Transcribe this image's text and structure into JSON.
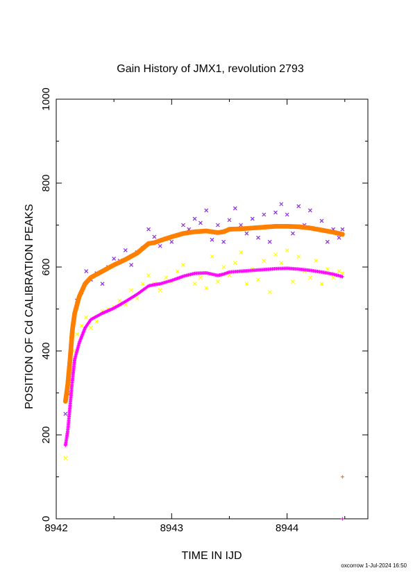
{
  "chart_data": {
    "type": "scatter",
    "title": "Gain History of JMX1, revolution 2793",
    "xlabel": "TIME IN IJD",
    "ylabel": "POSITION OF Cd CALIBRATION PEAKS",
    "xlim": [
      8942,
      8944.7
    ],
    "ylim": [
      0,
      1000
    ],
    "x_ticks": [
      "8942",
      "8943",
      "8944"
    ],
    "y_ticks": [
      "0",
      "200",
      "400",
      "600",
      "800",
      "1000"
    ],
    "grid": false,
    "series": [
      {
        "role": "fit-upper",
        "marker": "dot",
        "color": "#ff7f00",
        "points": [
          [
            8942.08,
            280
          ],
          [
            8942.1,
            320
          ],
          [
            8942.12,
            380
          ],
          [
            8942.14,
            450
          ],
          [
            8942.16,
            490
          ],
          [
            8942.2,
            530
          ],
          [
            8942.25,
            560
          ],
          [
            8942.3,
            575
          ],
          [
            8942.4,
            590
          ],
          [
            8942.5,
            605
          ],
          [
            8942.6,
            618
          ],
          [
            8942.7,
            633
          ],
          [
            8942.8,
            656
          ],
          [
            8942.85,
            658
          ],
          [
            8942.9,
            663
          ],
          [
            8943.0,
            672
          ],
          [
            8943.1,
            680
          ],
          [
            8943.2,
            684
          ],
          [
            8943.3,
            686
          ],
          [
            8943.4,
            682
          ],
          [
            8943.45,
            684
          ],
          [
            8943.5,
            690
          ],
          [
            8943.6,
            691
          ],
          [
            8943.7,
            693
          ],
          [
            8943.8,
            695
          ],
          [
            8943.9,
            697
          ],
          [
            8944.0,
            697
          ],
          [
            8944.1,
            696
          ],
          [
            8944.2,
            693
          ],
          [
            8944.3,
            688
          ],
          [
            8944.4,
            683
          ],
          [
            8944.48,
            678
          ]
        ]
      },
      {
        "role": "fit-lower",
        "marker": "plus",
        "color": "#ff00ff",
        "points": [
          [
            8942.08,
            175
          ],
          [
            8942.1,
            210
          ],
          [
            8942.12,
            270
          ],
          [
            8942.14,
            330
          ],
          [
            8942.16,
            380
          ],
          [
            8942.2,
            420
          ],
          [
            8942.25,
            455
          ],
          [
            8942.3,
            475
          ],
          [
            8942.4,
            490
          ],
          [
            8942.5,
            502
          ],
          [
            8942.6,
            518
          ],
          [
            8942.7,
            535
          ],
          [
            8942.8,
            555
          ],
          [
            8942.85,
            558
          ],
          [
            8942.9,
            560
          ],
          [
            8943.0,
            568
          ],
          [
            8943.1,
            578
          ],
          [
            8943.2,
            585
          ],
          [
            8943.3,
            586
          ],
          [
            8943.4,
            580
          ],
          [
            8943.45,
            583
          ],
          [
            8943.5,
            588
          ],
          [
            8943.6,
            590
          ],
          [
            8943.7,
            592
          ],
          [
            8943.8,
            594
          ],
          [
            8943.9,
            596
          ],
          [
            8944.0,
            597
          ],
          [
            8944.1,
            595
          ],
          [
            8944.2,
            592
          ],
          [
            8944.3,
            588
          ],
          [
            8944.4,
            583
          ],
          [
            8944.48,
            577
          ]
        ]
      },
      {
        "role": "measured-upper",
        "marker": "x",
        "color": "#8a2be2",
        "points": [
          [
            8942.08,
            250
          ],
          [
            8942.1,
            300
          ],
          [
            8942.12,
            370
          ],
          [
            8942.15,
            470
          ],
          [
            8942.18,
            520
          ],
          [
            8942.22,
            540
          ],
          [
            8942.26,
            590
          ],
          [
            8942.3,
            570
          ],
          [
            8942.35,
            585
          ],
          [
            8942.4,
            560
          ],
          [
            8942.45,
            600
          ],
          [
            8942.5,
            620
          ],
          [
            8942.55,
            615
          ],
          [
            8942.6,
            640
          ],
          [
            8942.65,
            605
          ],
          [
            8942.7,
            635
          ],
          [
            8942.75,
            645
          ],
          [
            8942.8,
            690
          ],
          [
            8942.85,
            672
          ],
          [
            8942.9,
            650
          ],
          [
            8942.95,
            668
          ],
          [
            8943.0,
            660
          ],
          [
            8943.05,
            675
          ],
          [
            8943.1,
            700
          ],
          [
            8943.15,
            690
          ],
          [
            8943.2,
            715
          ],
          [
            8943.25,
            705
          ],
          [
            8943.3,
            735
          ],
          [
            8943.35,
            665
          ],
          [
            8943.4,
            700
          ],
          [
            8943.45,
            660
          ],
          [
            8943.5,
            712
          ],
          [
            8943.55,
            740
          ],
          [
            8943.6,
            700
          ],
          [
            8943.65,
            680
          ],
          [
            8943.7,
            715
          ],
          [
            8943.75,
            670
          ],
          [
            8943.8,
            725
          ],
          [
            8943.85,
            660
          ],
          [
            8943.9,
            730
          ],
          [
            8943.95,
            750
          ],
          [
            8944.0,
            725
          ],
          [
            8944.05,
            680
          ],
          [
            8944.1,
            745
          ],
          [
            8944.15,
            700
          ],
          [
            8944.2,
            735
          ],
          [
            8944.25,
            690
          ],
          [
            8944.3,
            710
          ],
          [
            8944.35,
            660
          ],
          [
            8944.4,
            690
          ],
          [
            8944.45,
            670
          ],
          [
            8944.48,
            690
          ]
        ]
      },
      {
        "role": "measured-lower",
        "marker": "x",
        "color": "#ffff00",
        "points": [
          [
            8942.08,
            145
          ],
          [
            8942.1,
            200
          ],
          [
            8942.12,
            300
          ],
          [
            8942.15,
            400
          ],
          [
            8942.18,
            440
          ],
          [
            8942.22,
            460
          ],
          [
            8942.26,
            480
          ],
          [
            8942.3,
            455
          ],
          [
            8942.35,
            470
          ],
          [
            8942.4,
            495
          ],
          [
            8942.45,
            500
          ],
          [
            8942.5,
            505
          ],
          [
            8942.55,
            520
          ],
          [
            8942.6,
            510
          ],
          [
            8942.65,
            545
          ],
          [
            8942.7,
            525
          ],
          [
            8942.75,
            560
          ],
          [
            8942.8,
            580
          ],
          [
            8942.85,
            560
          ],
          [
            8942.9,
            545
          ],
          [
            8942.95,
            575
          ],
          [
            8943.0,
            565
          ],
          [
            8943.05,
            590
          ],
          [
            8943.1,
            605
          ],
          [
            8943.15,
            580
          ],
          [
            8943.2,
            560
          ],
          [
            8943.25,
            575
          ],
          [
            8943.3,
            550
          ],
          [
            8943.35,
            625
          ],
          [
            8943.4,
            565
          ],
          [
            8943.45,
            600
          ],
          [
            8943.5,
            580
          ],
          [
            8943.55,
            610
          ],
          [
            8943.6,
            635
          ],
          [
            8943.65,
            560
          ],
          [
            8943.7,
            595
          ],
          [
            8943.75,
            570
          ],
          [
            8943.8,
            615
          ],
          [
            8943.85,
            540
          ],
          [
            8943.9,
            630
          ],
          [
            8943.95,
            610
          ],
          [
            8944.0,
            640
          ],
          [
            8944.05,
            565
          ],
          [
            8944.1,
            625
          ],
          [
            8944.15,
            590
          ],
          [
            8944.2,
            575
          ],
          [
            8944.25,
            615
          ],
          [
            8944.3,
            560
          ],
          [
            8944.35,
            595
          ],
          [
            8944.4,
            575
          ],
          [
            8944.45,
            590
          ],
          [
            8944.48,
            585
          ]
        ]
      }
    ],
    "extra_markers": [
      {
        "x": 8944.48,
        "y": 100,
        "marker": "plus",
        "color": "#ff7f00"
      },
      {
        "x": 8944.48,
        "y": 0,
        "marker": "plus",
        "color": "#ff00ff"
      }
    ]
  },
  "footer": {
    "stamp": "oxcorrow  1-Jul-2024 16:50"
  }
}
